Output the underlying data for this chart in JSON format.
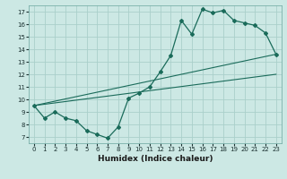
{
  "xlabel": "Humidex (Indice chaleur)",
  "bg_color": "#cce8e4",
  "grid_color": "#aacfca",
  "line_color": "#1a6b5a",
  "xlim": [
    -0.5,
    23.5
  ],
  "ylim": [
    6.5,
    17.5
  ],
  "xticks": [
    0,
    1,
    2,
    3,
    4,
    5,
    6,
    7,
    8,
    9,
    10,
    11,
    12,
    13,
    14,
    15,
    16,
    17,
    18,
    19,
    20,
    21,
    22,
    23
  ],
  "yticks": [
    7,
    8,
    9,
    10,
    11,
    12,
    13,
    14,
    15,
    16,
    17
  ],
  "curve1_x": [
    0,
    1,
    2,
    3,
    4,
    5,
    6,
    7,
    8,
    9,
    10,
    11,
    12,
    13,
    14,
    15,
    16,
    17,
    18,
    19,
    20,
    21,
    22,
    23
  ],
  "curve1_y": [
    9.5,
    8.5,
    9.0,
    8.5,
    8.3,
    7.5,
    7.2,
    6.9,
    7.8,
    10.1,
    10.5,
    11.0,
    12.2,
    13.5,
    16.3,
    15.2,
    17.2,
    16.9,
    17.1,
    16.3,
    16.1,
    15.9,
    15.3,
    13.6
  ],
  "line1_x": [
    0,
    23
  ],
  "line1_y": [
    9.5,
    13.6
  ],
  "line2_x": [
    0,
    23
  ],
  "line2_y": [
    9.5,
    12.0
  ],
  "title_fontsize": 7,
  "xlabel_fontsize": 6.5,
  "tick_fontsize": 5.0
}
